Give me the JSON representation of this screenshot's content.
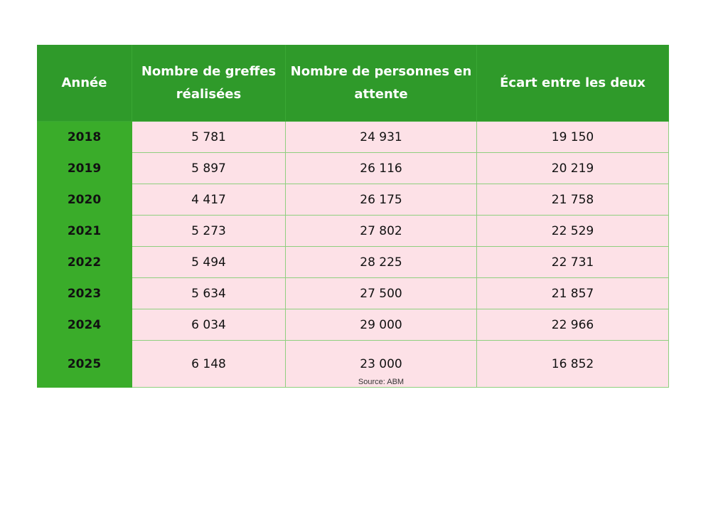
{
  "table": {
    "header": [
      "Année",
      "Nombre de greffes réalisées",
      "Nombre de personnes en attente",
      "Écart entre les deux"
    ],
    "rows": [
      [
        "2018",
        "5 781",
        "24 931",
        "19 150"
      ],
      [
        "2019",
        "5 897",
        "26 116",
        "20 219"
      ],
      [
        "2020",
        "4 417",
        "26 175",
        "21 758"
      ],
      [
        "2021",
        "5 273",
        "27 802",
        "22 529"
      ],
      [
        "2022",
        "5 494",
        "28 225",
        "22 731"
      ],
      [
        "2023",
        "5 634",
        "27 500",
        "21 857"
      ],
      [
        "2024",
        "6 034",
        "29 000",
        "22 966"
      ],
      [
        "2025",
        "6 148",
        "23 000",
        "16 852"
      ]
    ],
    "source": "Source: ABM"
  }
}
